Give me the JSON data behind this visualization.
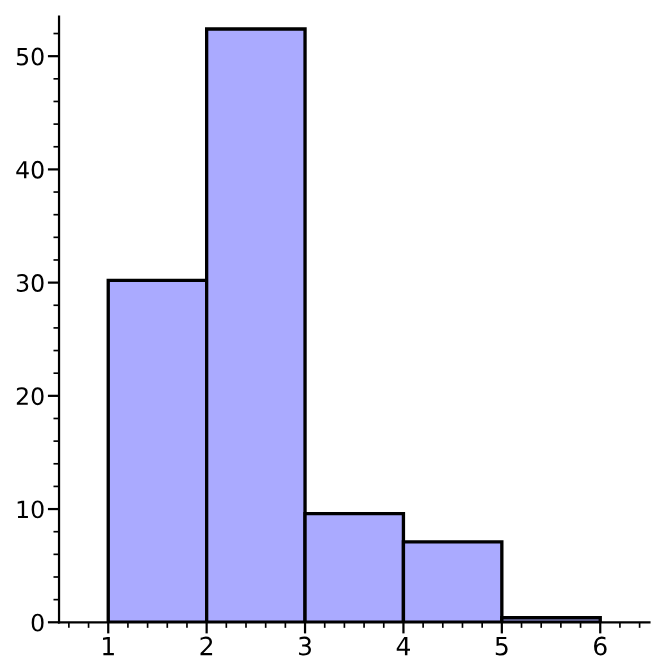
{
  "chart_data": {
    "type": "histogram",
    "bins": [
      1,
      2,
      3,
      4,
      5,
      6
    ],
    "values": [
      30.2,
      52.4,
      9.6,
      7.1,
      0.4
    ],
    "color": "#aaaaff",
    "xlim": [
      0.5,
      6.5
    ],
    "ylim": [
      0,
      53.5
    ],
    "xticks": [
      1,
      2,
      3,
      4,
      5,
      6
    ],
    "yticks": [
      0,
      10,
      20,
      30,
      40,
      50
    ],
    "grid": false
  }
}
